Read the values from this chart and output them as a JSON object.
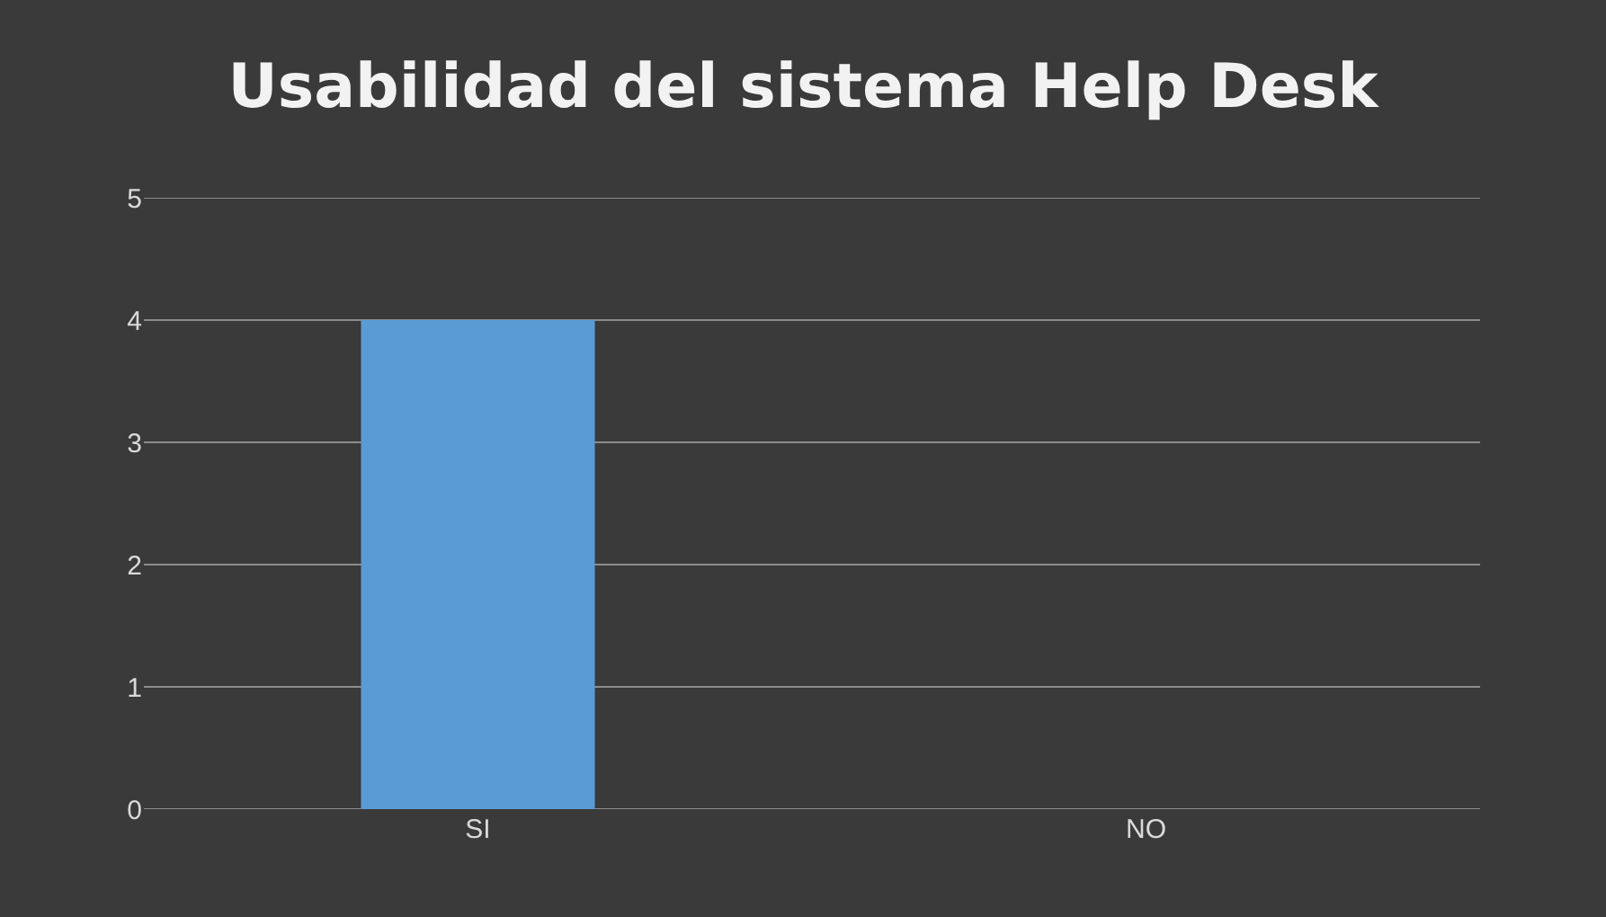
{
  "chart_data": {
    "type": "bar",
    "title": "Usabilidad del sistema Help Desk",
    "categories": [
      "SI",
      "NO"
    ],
    "values": [
      4,
      0
    ],
    "color": "#5b9bd5",
    "ylim": [
      0,
      5
    ],
    "yticks": [
      0,
      1,
      2,
      3,
      4,
      5
    ],
    "grid": true
  }
}
